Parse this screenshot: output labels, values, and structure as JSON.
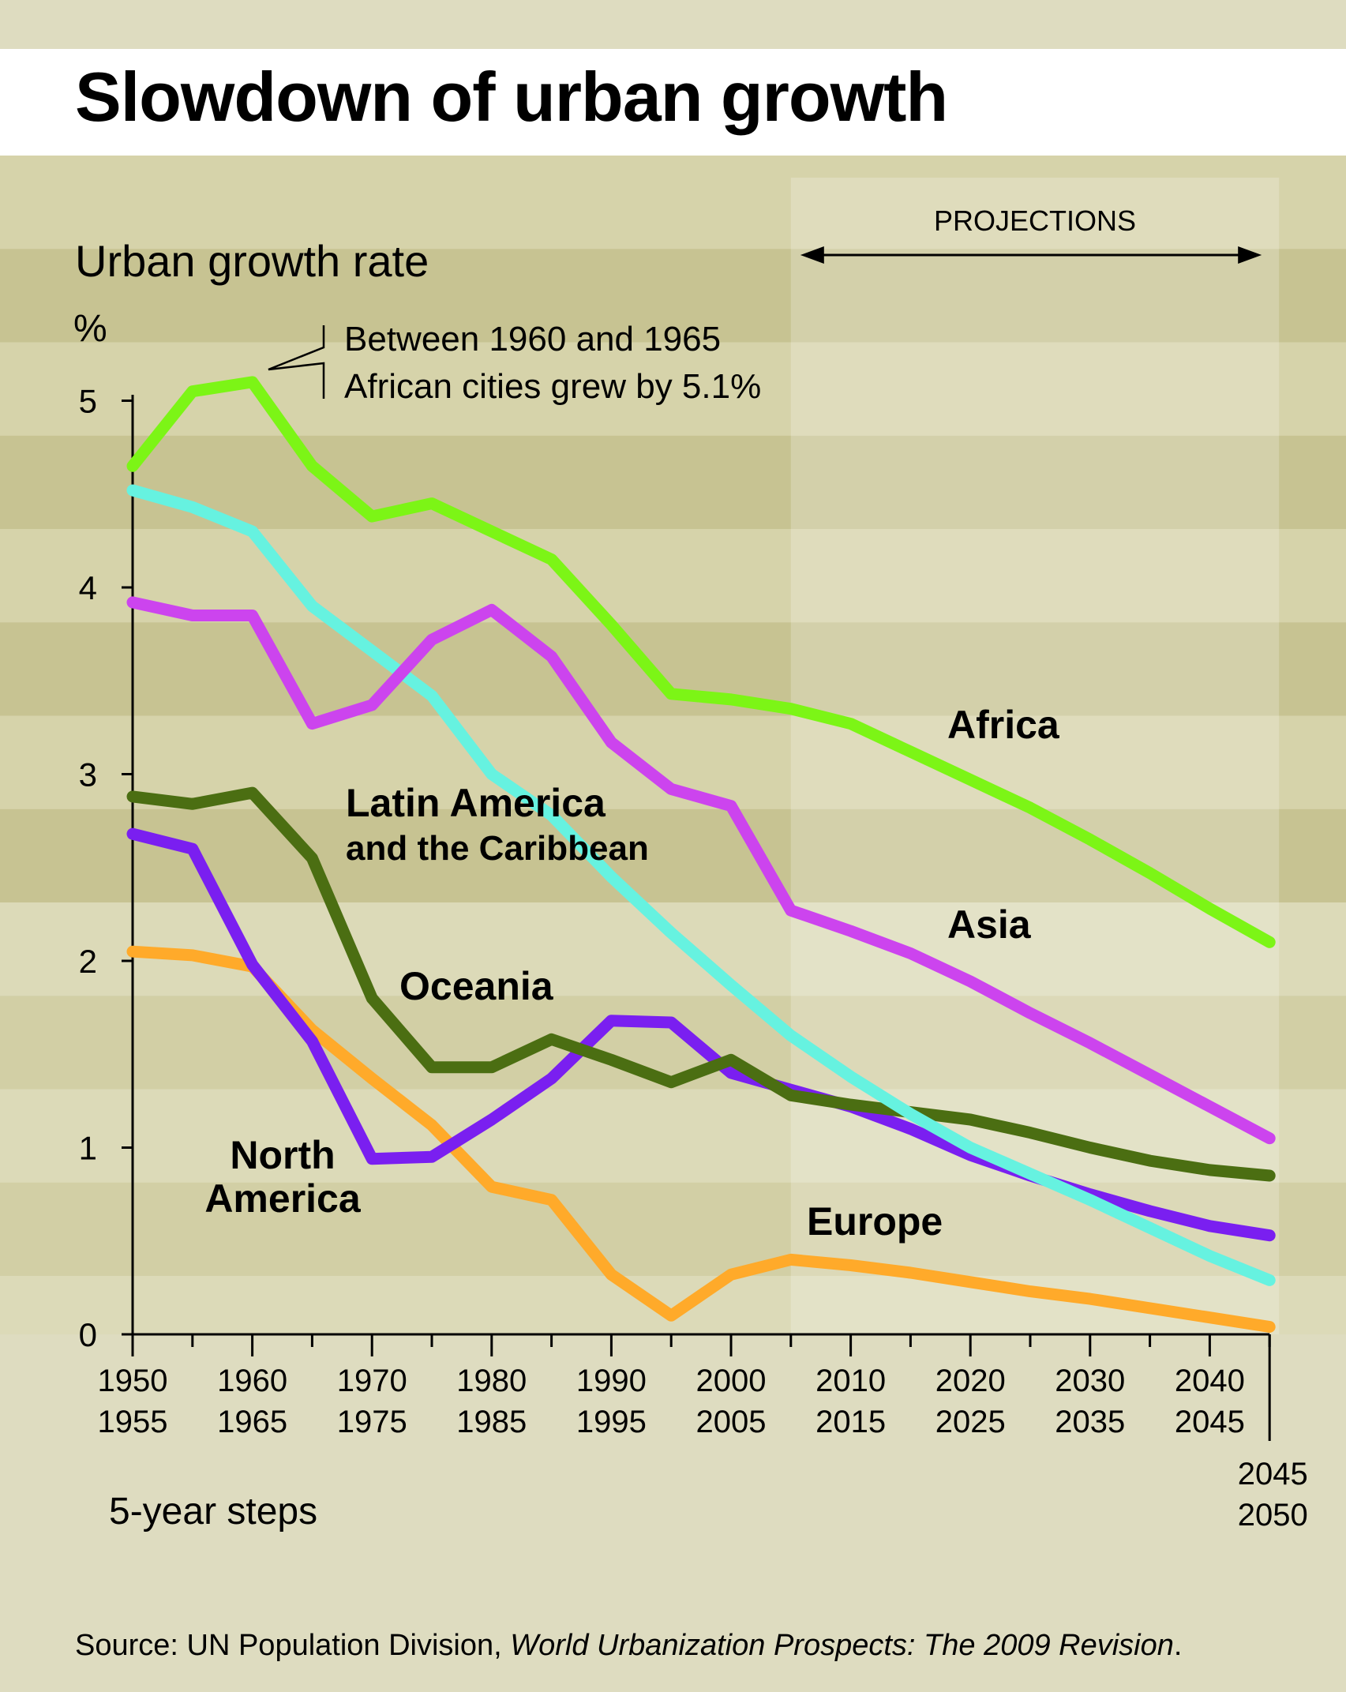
{
  "chart_data": {
    "type": "line",
    "title": "Slowdown of urban growth",
    "ylabel": "Urban growth rate",
    "yunit": "%",
    "xlabel": "5-year steps",
    "ylim": [
      0,
      5
    ],
    "yticks": [
      0,
      1,
      2,
      3,
      4,
      5
    ],
    "x": [
      "1950-1955",
      "1955-1960",
      "1960-1965",
      "1965-1970",
      "1970-1975",
      "1975-1980",
      "1980-1985",
      "1985-1990",
      "1990-1995",
      "1995-2000",
      "2000-2005",
      "2005-2010",
      "2010-2015",
      "2015-2020",
      "2020-2025",
      "2025-2030",
      "2030-2035",
      "2035-2040",
      "2040-2045",
      "2045-2050"
    ],
    "xtick_labels": [
      {
        "top": "1950",
        "bottom": "1955"
      },
      {
        "top": "1960",
        "bottom": "1965"
      },
      {
        "top": "1970",
        "bottom": "1975"
      },
      {
        "top": "1980",
        "bottom": "1985"
      },
      {
        "top": "1990",
        "bottom": "1995"
      },
      {
        "top": "2000",
        "bottom": "2005"
      },
      {
        "top": "2010",
        "bottom": "2015"
      },
      {
        "top": "2020",
        "bottom": "2025"
      },
      {
        "top": "2030",
        "bottom": "2035"
      },
      {
        "top": "2040",
        "bottom": "2045"
      }
    ],
    "last_tick_label": {
      "top": "2045",
      "bottom": "2050"
    },
    "projections_label": "PROJECTIONS",
    "projections_start": "2005-2010",
    "annotation": {
      "line1": "Between 1960 and 1965",
      "line2": "African cities grew by 5.1%"
    },
    "series": [
      {
        "name": "Africa",
        "color": "#7cf516",
        "label": [
          "Africa"
        ],
        "values": [
          4.65,
          5.05,
          5.1,
          4.65,
          4.38,
          4.45,
          4.3,
          4.15,
          3.8,
          3.43,
          3.4,
          3.35,
          3.27,
          3.12,
          2.97,
          2.82,
          2.65,
          2.47,
          2.28,
          2.1
        ]
      },
      {
        "name": "Asia",
        "color": "#cc44ee",
        "label": [
          "Asia"
        ],
        "values": [
          3.92,
          3.85,
          3.85,
          3.27,
          3.37,
          3.72,
          3.88,
          3.63,
          3.17,
          2.92,
          2.83,
          2.27,
          2.16,
          2.04,
          1.89,
          1.72,
          1.56,
          1.39,
          1.22,
          1.05
        ]
      },
      {
        "name": "Latin America and the Caribbean",
        "color": "#66f2e0",
        "label": [
          "Latin America",
          "and the Caribbean"
        ],
        "values": [
          4.52,
          4.43,
          4.3,
          3.9,
          3.66,
          3.42,
          3.0,
          2.78,
          2.45,
          2.15,
          1.87,
          1.6,
          1.38,
          1.18,
          1.0,
          0.86,
          0.72,
          0.57,
          0.42,
          0.29
        ]
      },
      {
        "name": "Oceania",
        "color": "#4b6e12",
        "label": [
          "Oceania"
        ],
        "values": [
          2.88,
          2.84,
          2.9,
          2.55,
          1.8,
          1.43,
          1.43,
          1.58,
          1.47,
          1.35,
          1.47,
          1.28,
          1.23,
          1.19,
          1.15,
          1.08,
          1.0,
          0.93,
          0.88,
          0.85
        ]
      },
      {
        "name": "North America",
        "color": "#7a1ff0",
        "label": [
          "North",
          "America"
        ],
        "values": [
          2.68,
          2.6,
          1.98,
          1.57,
          0.94,
          0.95,
          1.15,
          1.37,
          1.68,
          1.67,
          1.4,
          1.31,
          1.22,
          1.1,
          0.96,
          0.85,
          0.75,
          0.66,
          0.58,
          0.53
        ]
      },
      {
        "name": "Europe",
        "color": "#ffaa2a",
        "label": [
          "Europe"
        ],
        "values": [
          2.05,
          2.03,
          1.97,
          1.63,
          1.37,
          1.12,
          0.79,
          0.72,
          0.32,
          0.1,
          0.32,
          0.4,
          0.37,
          0.33,
          0.28,
          0.23,
          0.19,
          0.14,
          0.09,
          0.04
        ]
      }
    ]
  },
  "source": {
    "prefix": "Source: UN Population Division, ",
    "title": "World Urbanization Prospects: The 2009 Revision",
    "suffix": "."
  }
}
